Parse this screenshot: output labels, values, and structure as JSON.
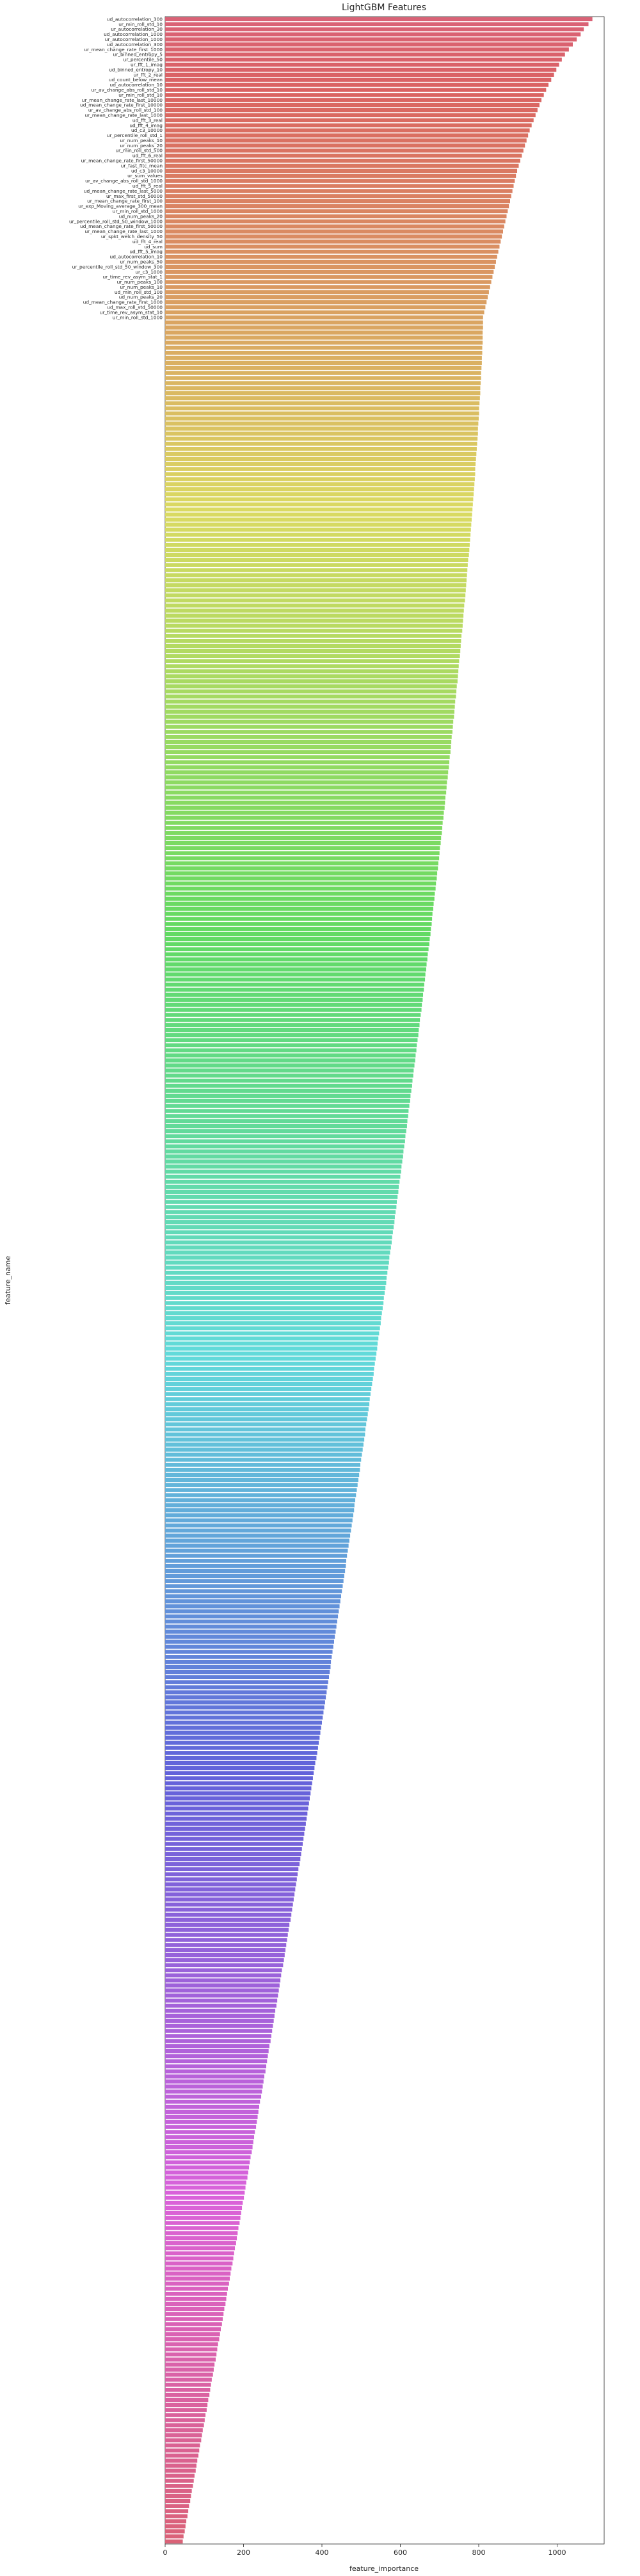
{
  "chart_data": {
    "type": "bar",
    "orientation": "horizontal",
    "title": "LightGBM Features",
    "xlabel": "feature_importance",
    "ylabel": "feature_name",
    "xlim": [
      0,
      1120
    ],
    "xticks": [
      0,
      200,
      400,
      600,
      800,
      1000
    ],
    "grid": false,
    "legend": "none",
    "bar_count": 500,
    "value_range": [
      1090,
      45
    ],
    "sample_labels": [
      "ud_autocorrelation_300",
      "ur_min_roll_std_10",
      "ur_autocorrelation_30",
      "ud_autocorrelation_1000",
      "ur_autocorrelation_1000",
      "ud_autocorrelation_300",
      "ur_mean_change_rate_first_1000",
      "ur_binned_entropy_5",
      "ur_percentile_50",
      "ur_fft_1_imag",
      "ud_binned_entropy_10",
      "ur_fft_2_real",
      "ud_count_below_mean",
      "ud_autocorrelation_10",
      "ur_av_change_abs_roll_std_10",
      "ur_min_roll_std_10",
      "ur_mean_change_rate_last_10000",
      "ud_mean_change_rate_first_10000",
      "ur_av_change_abs_roll_std_100",
      "ur_mean_change_rate_last_1000",
      "ud_fft_3_real",
      "ud_fft_4_imag",
      "ud_c3_10000",
      "ur_percentile_roll_std_1",
      "ur_num_peaks_10",
      "ur_num_peaks_20",
      "ur_min_roll_std_500",
      "ud_fft_6_real",
      "ur_mean_change_rate_first_50000",
      "ur_fast_fitc_mean",
      "ud_c3_10000",
      "ur_sum_values",
      "ur_av_change_abs_roll_std_1000",
      "ud_fft_5_real",
      "ud_mean_change_rate_last_5000",
      "ur_max_first_std_50000",
      "ur_mean_change_rate_first_100",
      "ur_exp_Moving_average_300_mean",
      "ur_min_roll_std_1000",
      "ud_num_peaks_20",
      "ur_percentile_roll_std_50_window_1000",
      "ud_mean_change_rate_first_50000",
      "ur_mean_change_rate_last_1000",
      "ur_spkt_welch_density_50",
      "ud_fft_4_real",
      "ud_sum",
      "ud_fft_5_imag",
      "ud_autocorrelation_10",
      "ur_num_peaks_50",
      "ur_percentile_roll_std_50_window_300",
      "ur_c3_1000",
      "ur_time_rev_asym_stat_1",
      "ur_num_peaks_100",
      "ur_num_peaks_10",
      "ud_min_roll_std_100",
      "ud_num_peaks_20",
      "ud_mean_change_rate_first_1000",
      "ud_max_roll_std_50000",
      "ur_time_rev_asym_stat_10",
      "ur_min_roll_std_1000"
    ],
    "sample_values": [
      1090,
      1080,
      1068,
      1060,
      1050,
      1040,
      1030,
      1020,
      1012,
      1005,
      998,
      992,
      985,
      978,
      972,
      966,
      960,
      955,
      950,
      945,
      940,
      935,
      930,
      926,
      922,
      918,
      914,
      910,
      906,
      902,
      898,
      895,
      892,
      889,
      886,
      883,
      880,
      877,
      874,
      871,
      868,
      865,
      862,
      859,
      856,
      853,
      850,
      847,
      844,
      841,
      838,
      835,
      832,
      829,
      826,
      823,
      820,
      817,
      814,
      811
    ]
  }
}
